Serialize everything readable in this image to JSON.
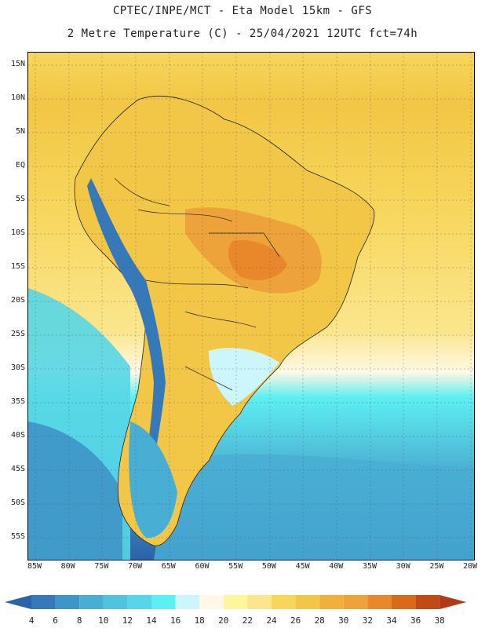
{
  "header": {
    "title_line1": "CPTEC/INPE/MCT -  Eta Model 15km - GFS",
    "title_line2": "2 Metre Temperature (C) - 25/04/2021 12UTC fct=74h"
  },
  "map": {
    "region": "South America",
    "lat_labels": [
      "15N",
      "10N",
      "5N",
      "EQ",
      "5S",
      "10S",
      "15S",
      "20S",
      "25S",
      "30S",
      "35S",
      "40S",
      "45S",
      "50S",
      "55S"
    ],
    "lon_labels": [
      "85W",
      "80W",
      "75W",
      "70W",
      "65W",
      "60W",
      "55W",
      "50W",
      "45W",
      "40W",
      "35W",
      "30W",
      "25W",
      "20W"
    ]
  },
  "colorbar": {
    "values": [
      "4",
      "6",
      "8",
      "10",
      "12",
      "14",
      "16",
      "18",
      "20",
      "22",
      "24",
      "26",
      "28",
      "30",
      "32",
      "34",
      "36",
      "38"
    ],
    "colors": [
      "#2b62a8",
      "#3579b9",
      "#3e95c8",
      "#49aed4",
      "#52c3dc",
      "#56d6e6",
      "#5deff3",
      "#ccf6fb",
      "#fff8e6",
      "#fff59a",
      "#fbe68d",
      "#f7d65a",
      "#f2c646",
      "#f0b13c",
      "#eea23a",
      "#e8882a",
      "#d86a1c",
      "#c24a15",
      "#b03a18"
    ]
  }
}
